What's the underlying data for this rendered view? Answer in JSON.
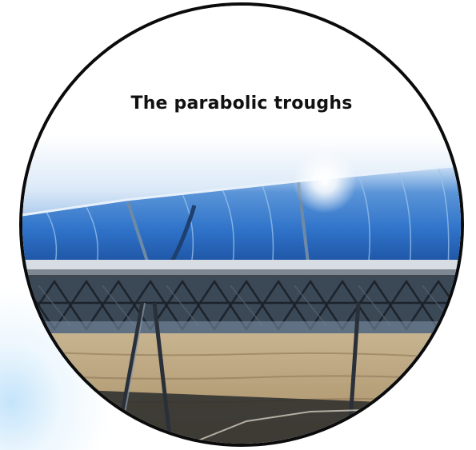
{
  "caption": {
    "text": "The parabolic troughs"
  },
  "photo": {
    "subject": "parabolic trough solar collectors in a desert field",
    "colors": {
      "sky_top": "#ffffff",
      "mirror_blue": "#2f73c9",
      "mirror_deep": "#1a4c9a",
      "ground": "#b9a27d",
      "frame_border": "#0b0b0b"
    }
  }
}
